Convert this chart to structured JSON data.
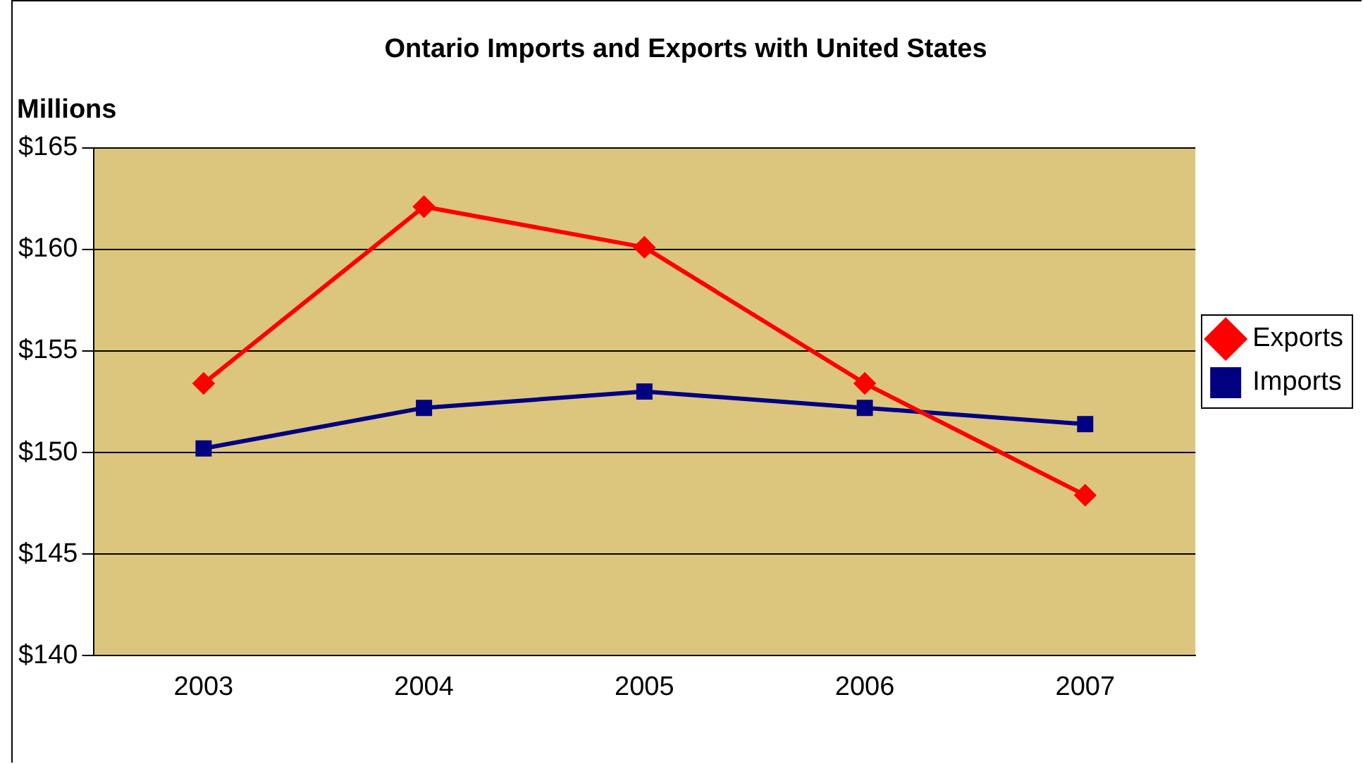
{
  "chart_data": {
    "type": "line",
    "title": "Ontario Imports and Exports with United States",
    "ylabel": "Millions",
    "categories": [
      "2003",
      "2004",
      "2005",
      "2006",
      "2007"
    ],
    "series": [
      {
        "name": "Exports",
        "color": "#ff0000",
        "marker": "diamond",
        "values": [
          153.4,
          162.1,
          160.1,
          153.4,
          147.9
        ]
      },
      {
        "name": "Imports",
        "color": "#000080",
        "marker": "square",
        "values": [
          150.2,
          152.2,
          153.0,
          152.2,
          151.4
        ]
      }
    ],
    "ylim": [
      140,
      165
    ],
    "yticks": [
      {
        "value": 140,
        "label": "$140"
      },
      {
        "value": 145,
        "label": "$145"
      },
      {
        "value": 150,
        "label": "$150"
      },
      {
        "value": 155,
        "label": "$155"
      },
      {
        "value": 160,
        "label": "$160"
      },
      {
        "value": 165,
        "label": "$165"
      }
    ],
    "grid": "y",
    "legend": "right",
    "line_style": "solid"
  }
}
